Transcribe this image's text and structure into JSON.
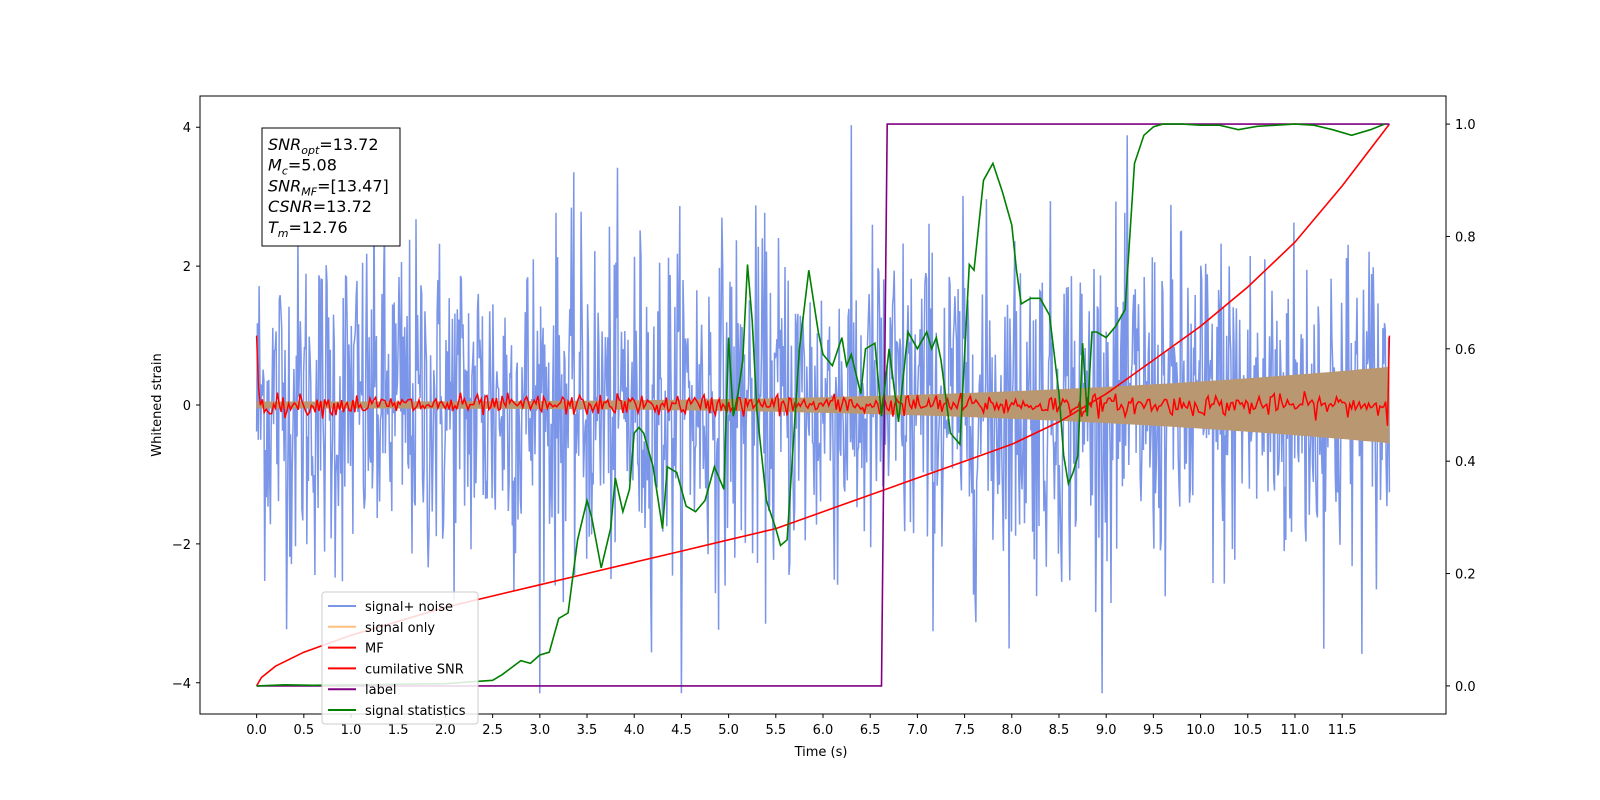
{
  "chart_data": {
    "type": "line",
    "xlabel": "Time (s)",
    "ylabel": "Whitened strain",
    "xlim": [
      -0.6,
      12.6
    ],
    "ylim": [
      -4.45,
      4.45
    ],
    "y2lim": [
      -0.05,
      1.05
    ],
    "x_ticks": [
      0.0,
      0.5,
      1.0,
      1.5,
      2.0,
      2.5,
      3.0,
      3.5,
      4.0,
      4.5,
      5.0,
      5.5,
      6.0,
      6.5,
      7.0,
      7.5,
      8.0,
      8.5,
      9.0,
      9.5,
      10.0,
      10.5,
      11.0,
      11.5
    ],
    "x_tick_labels": [
      "0.0",
      "0.5",
      "1.0",
      "1.5",
      "2.0",
      "2.5",
      "3.0",
      "3.5",
      "4.0",
      "4.5",
      "5.0",
      "5.5",
      "6.0",
      "6.5",
      "7.0",
      "7.5",
      "8.0",
      "8.5",
      "9.0",
      "9.5",
      "10.0",
      "10.5",
      "11.0",
      "11.5"
    ],
    "y_ticks": [
      -4,
      -2,
      0,
      2,
      4
    ],
    "y_tick_labels": [
      "−4",
      "−2",
      "0",
      "2",
      "4"
    ],
    "y2_ticks": [
      0.0,
      0.2,
      0.4,
      0.6,
      0.8,
      1.0
    ],
    "y2_tick_labels": [
      "0.0",
      "0.2",
      "0.4",
      "0.6",
      "0.8",
      "1.0"
    ],
    "grid": false,
    "legend_position": "lower-left",
    "annotation": {
      "lines": [
        {
          "main": "SNR",
          "sub": "opt",
          "value": "=13.72"
        },
        {
          "main": "M",
          "sub": "c",
          "value": "=5.08"
        },
        {
          "main": "SNR",
          "sub": "MF",
          "value": "=[13.47]"
        },
        {
          "main": "CSNR",
          "sub": "",
          "value": "=13.72"
        },
        {
          "main": "T",
          "sub": "m",
          "value": "=12.76"
        }
      ]
    },
    "series": [
      {
        "name": "signal+ noise",
        "axis": "left",
        "color": "#7b96e8",
        "kind": "noise-band",
        "t_range": [
          0.0,
          12.0
        ],
        "typical_envelope": [
          -1.6,
          1.6
        ],
        "max": 4.05,
        "min": -4.15
      },
      {
        "name": "signal only",
        "axis": "left",
        "color": "#ffbf7f",
        "kind": "chirp-band",
        "t_range": [
          0.0,
          12.0
        ],
        "amplitude_start": 0.05,
        "amplitude_end": 0.55
      },
      {
        "name": "MF",
        "axis": "left",
        "color": "#ff0000",
        "kind": "noise-line",
        "t_range": [
          0.0,
          12.0
        ],
        "start_value": 1.0,
        "end_value": 1.0,
        "typical_envelope": [
          -0.15,
          0.15
        ]
      },
      {
        "name": "cumilative SNR",
        "axis": "right",
        "color": "#ff0000",
        "x": [
          0.0,
          0.05,
          0.2,
          0.5,
          1.0,
          1.5,
          2.0,
          2.5,
          3.0,
          3.5,
          4.0,
          4.5,
          5.0,
          5.5,
          6.0,
          6.5,
          7.0,
          7.5,
          8.0,
          8.5,
          9.0,
          9.5,
          10.0,
          10.5,
          11.0,
          11.5,
          12.0
        ],
        "y": [
          0.0,
          0.015,
          0.035,
          0.06,
          0.09,
          0.115,
          0.14,
          0.16,
          0.18,
          0.2,
          0.22,
          0.24,
          0.26,
          0.28,
          0.31,
          0.34,
          0.37,
          0.4,
          0.43,
          0.47,
          0.52,
          0.58,
          0.64,
          0.71,
          0.79,
          0.89,
          1.0
        ]
      },
      {
        "name": "label",
        "axis": "right",
        "color": "#800080",
        "x": [
          0.0,
          6.62,
          6.68,
          12.0
        ],
        "y": [
          0.0,
          0.0,
          1.0,
          1.0
        ]
      },
      {
        "name": "signal statistics",
        "axis": "right",
        "color": "#008000",
        "x": [
          0.0,
          0.3,
          0.6,
          1.0,
          1.5,
          2.0,
          2.5,
          2.6,
          2.8,
          2.9,
          3.0,
          3.1,
          3.2,
          3.3,
          3.4,
          3.5,
          3.55,
          3.65,
          3.75,
          3.8,
          3.88,
          3.95,
          4.0,
          4.05,
          4.1,
          4.2,
          4.3,
          4.35,
          4.45,
          4.55,
          4.65,
          4.75,
          4.85,
          4.95,
          5.0,
          5.05,
          5.1,
          5.15,
          5.2,
          5.25,
          5.3,
          5.4,
          5.5,
          5.55,
          5.62,
          5.7,
          5.75,
          5.85,
          5.95,
          6.0,
          6.1,
          6.2,
          6.25,
          6.3,
          6.4,
          6.45,
          6.55,
          6.62,
          6.7,
          6.8,
          6.9,
          7.0,
          7.1,
          7.15,
          7.2,
          7.25,
          7.35,
          7.45,
          7.55,
          7.6,
          7.7,
          7.8,
          7.9,
          8.0,
          8.05,
          8.1,
          8.2,
          8.3,
          8.4,
          8.5,
          8.55,
          8.6,
          8.65,
          8.7,
          8.75,
          8.8,
          8.85,
          8.9,
          9.0,
          9.1,
          9.2,
          9.25,
          9.3,
          9.4,
          9.5,
          9.6,
          9.8,
          10.0,
          10.2,
          10.4,
          10.6,
          10.8,
          11.0,
          11.2,
          11.4,
          11.6,
          11.8,
          11.95
        ],
        "y": [
          0.0,
          0.002,
          0.001,
          0.002,
          0.003,
          0.004,
          0.01,
          0.02,
          0.045,
          0.04,
          0.055,
          0.06,
          0.12,
          0.13,
          0.26,
          0.33,
          0.3,
          0.21,
          0.28,
          0.37,
          0.31,
          0.35,
          0.45,
          0.46,
          0.45,
          0.39,
          0.28,
          0.39,
          0.38,
          0.32,
          0.31,
          0.33,
          0.39,
          0.35,
          0.62,
          0.48,
          0.52,
          0.58,
          0.75,
          0.65,
          0.49,
          0.33,
          0.28,
          0.25,
          0.26,
          0.47,
          0.6,
          0.74,
          0.63,
          0.59,
          0.57,
          0.62,
          0.57,
          0.59,
          0.52,
          0.6,
          0.61,
          0.48,
          0.6,
          0.47,
          0.63,
          0.6,
          0.63,
          0.6,
          0.62,
          0.58,
          0.45,
          0.43,
          0.75,
          0.74,
          0.9,
          0.93,
          0.88,
          0.82,
          0.74,
          0.68,
          0.69,
          0.69,
          0.66,
          0.52,
          0.41,
          0.36,
          0.38,
          0.41,
          0.61,
          0.48,
          0.63,
          0.63,
          0.62,
          0.64,
          0.67,
          0.8,
          0.93,
          0.98,
          0.995,
          1.0,
          1.0,
          0.998,
          0.998,
          0.99,
          0.996,
          0.998,
          1.0,
          0.998,
          0.99,
          0.98,
          0.99,
          1.0
        ]
      }
    ]
  }
}
